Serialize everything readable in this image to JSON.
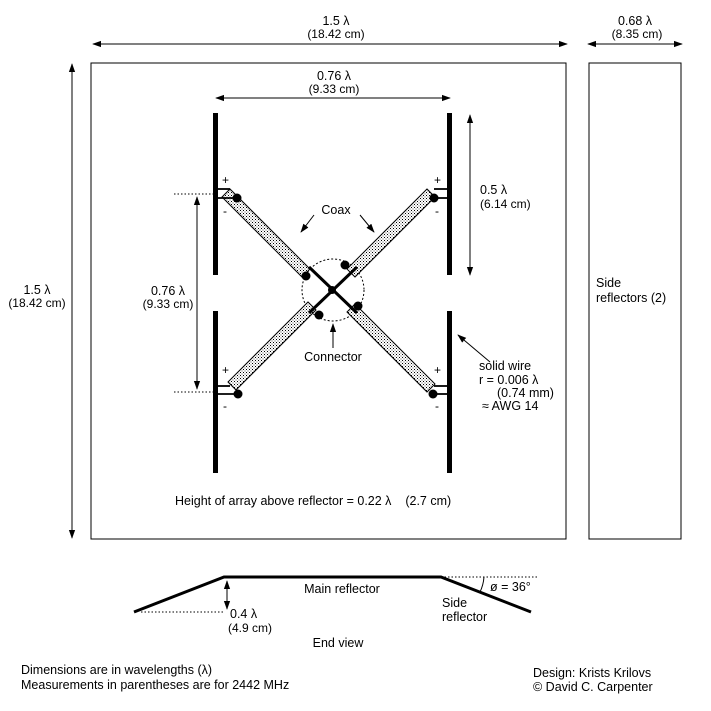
{
  "dims": {
    "width_lambda": "1.5 λ",
    "width_cm": "(18.42 cm)",
    "height_lambda": "1.5 λ",
    "height_cm": "(18.42 cm)",
    "side_width_lambda": "0.68 λ",
    "side_width_cm": "(8.35 cm)",
    "spacing_h_lambda": "0.76 λ",
    "spacing_h_cm": "(9.33 cm)",
    "spacing_v_lambda": "0.76 λ",
    "spacing_v_cm": "(9.33 cm)",
    "dipole_lambda": "0.5 λ",
    "dipole_cm": "(6.14 cm)"
  },
  "labels": {
    "coax": "Coax",
    "connector": "Connector",
    "plus": "+",
    "minus": "-",
    "side_reflectors": [
      "Side",
      "reflectors (2)"
    ],
    "wire": [
      "solid wire",
      "r = 0.006 λ",
      "(0.74 mm)",
      "≈ AWG 14"
    ],
    "height_text": "Height of array above reflector = 0.22 λ    (2.7 cm)"
  },
  "end_view": {
    "main_reflector": "Main reflector",
    "side_reflector": [
      "Side",
      "reflector"
    ],
    "angle": "ø = 36°",
    "depth_lambda": "0.4 λ",
    "depth_cm": "(4.9 cm)",
    "title": "End view"
  },
  "footer": {
    "notes": [
      "Dimensions are in wavelengths (λ)",
      "Measurements in parentheses are for 2442 MHz"
    ],
    "credits": [
      "Design: Krists Krilovs",
      "© David C. Carpenter"
    ]
  }
}
